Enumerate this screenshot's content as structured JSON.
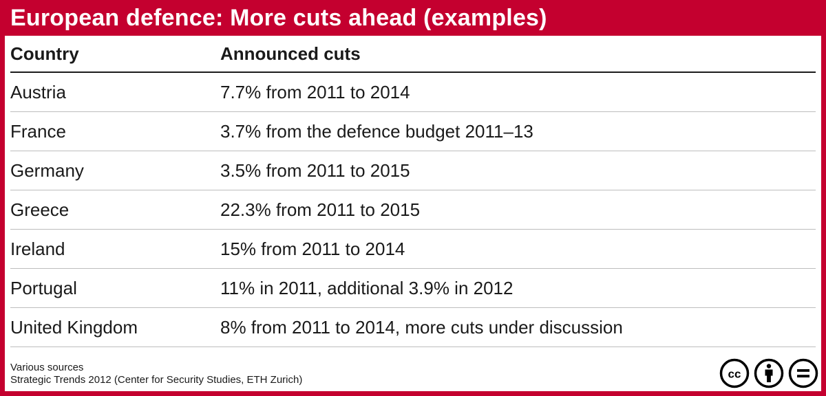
{
  "title": "European defence: More cuts ahead (examples)",
  "table": {
    "headers": {
      "country": "Country",
      "cuts": "Announced cuts"
    },
    "rows": [
      {
        "country": "Austria",
        "cuts": "7.7% from 2011 to 2014"
      },
      {
        "country": "France",
        "cuts": "3.7% from the defence budget 2011–13"
      },
      {
        "country": "Germany",
        "cuts": "3.5% from 2011 to 2015"
      },
      {
        "country": "Greece",
        "cuts": "22.3% from 2011 to 2015"
      },
      {
        "country": "Ireland",
        "cuts": "15% from 2011 to 2014"
      },
      {
        "country": "Portugal",
        "cuts": "11% in 2011, additional 3.9% in 2012"
      },
      {
        "country": "United Kingdom",
        "cuts": "8% from 2011 to 2014, more cuts under discussion"
      }
    ]
  },
  "footer": {
    "line1": "Various sources",
    "line2": "Strategic Trends 2012 (Center for Security Studies, ETH Zurich)"
  },
  "license": {
    "cc_text": "cc",
    "icons": [
      "creative-commons-icon",
      "attribution-icon",
      "no-derivatives-icon"
    ]
  },
  "colors": {
    "accent": "#c4002f",
    "text": "#1a1a1a",
    "rule": "#bdbdbd"
  }
}
